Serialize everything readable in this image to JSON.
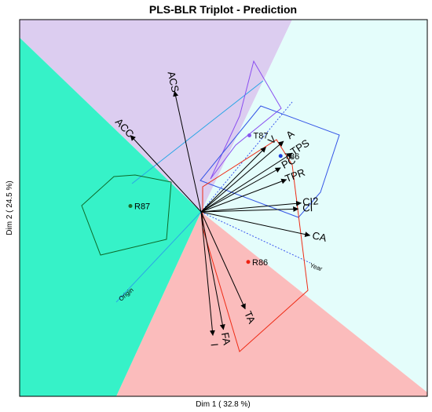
{
  "chart_data": {
    "type": "scatter",
    "title": "PLS-BLR Triplot - Prediction",
    "xlabel": "Dim 1 ( 32.8 %)",
    "ylabel": "Dim 2 ( 24.5 %)",
    "regions": [
      {
        "name": "teal-region",
        "color": "#36f2c8"
      },
      {
        "name": "lavender-region",
        "color": "#dccdf0"
      },
      {
        "name": "lightcyan-region",
        "color": "#e4fdfb"
      },
      {
        "name": "pink-region",
        "color": "#fbbcbc"
      }
    ],
    "variables": [
      {
        "label": "ACS",
        "x": -0.45,
        "y": 2.05
      },
      {
        "label": "ACC",
        "x": -1.2,
        "y": 1.3
      },
      {
        "label": "V",
        "x": 1.1,
        "y": 1.1
      },
      {
        "label": "A",
        "x": 1.4,
        "y": 1.2
      },
      {
        "label": "TPS",
        "x": 1.55,
        "y": 1.0
      },
      {
        "label": "PC",
        "x": 1.35,
        "y": 0.75
      },
      {
        "label": "TPR",
        "x": 1.45,
        "y": 0.55
      },
      {
        "label": "CI2",
        "x": 1.7,
        "y": 0.15
      },
      {
        "label": "CI",
        "x": 1.65,
        "y": 0.05
      },
      {
        "label": "CA",
        "x": 1.85,
        "y": -0.4
      },
      {
        "label": "TA",
        "x": 0.75,
        "y": -1.65
      },
      {
        "label": "FA",
        "x": 0.38,
        "y": -2.0
      },
      {
        "label": "I",
        "x": 0.2,
        "y": -2.1
      }
    ],
    "points": [
      {
        "label": "T87",
        "x": 0.82,
        "y": 1.3,
        "color": "#8855ee"
      },
      {
        "label": "T86",
        "x": 1.35,
        "y": 0.95,
        "color": "#1f3fdd"
      },
      {
        "label": "R87",
        "x": -1.2,
        "y": 0.1,
        "color": "#1d6a2a"
      },
      {
        "label": "R86",
        "x": 0.8,
        "y": -0.85,
        "color": "#ee2211"
      }
    ],
    "trajectory_axes": [
      {
        "label": "Origin",
        "color": "#2aa6e6"
      },
      {
        "label": "Year",
        "color": "#3c57ee"
      }
    ],
    "hull_colors": {
      "T87": "#8a4ef0",
      "T86": "#3454e6",
      "R87": "#0d6a2a",
      "R86": "#ee2a14"
    }
  }
}
